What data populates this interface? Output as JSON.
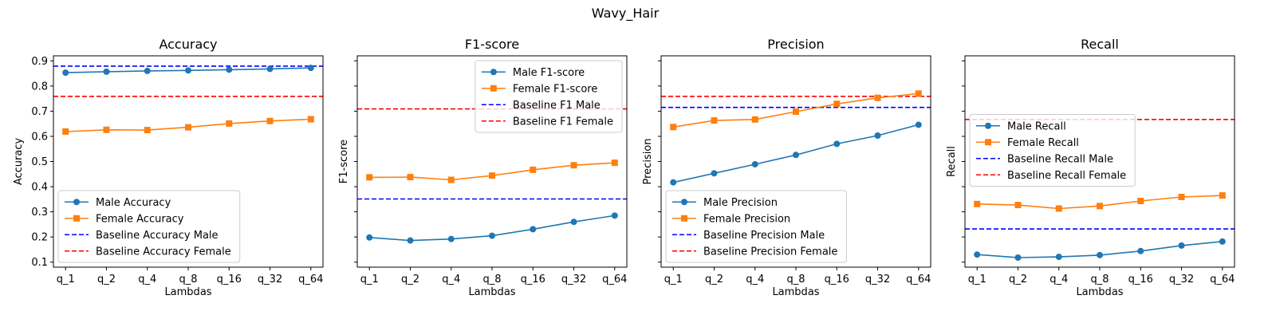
{
  "figure": {
    "suptitle": "Wavy_Hair"
  },
  "colors": {
    "male": "#1f77b4",
    "female": "#ff7f0e",
    "baseline_male": "#0000ff",
    "baseline_female": "#ff0000"
  },
  "chart_data": [
    {
      "type": "line",
      "title": "Accuracy",
      "xlabel": "Lambdas",
      "ylabel": "Accuracy",
      "categories": [
        "q_1",
        "q_2",
        "q_4",
        "q_8",
        "q_16",
        "q_32",
        "q_64"
      ],
      "ylim": [
        0.08,
        0.92
      ],
      "yticks": [
        "0.1",
        "0.2",
        "0.3",
        "0.4",
        "0.5",
        "0.6",
        "0.7",
        "0.8",
        "0.9"
      ],
      "show_ytick_labels": true,
      "legend_position": "lower-left",
      "series": [
        {
          "name": "Male Accuracy",
          "marker": "circle",
          "color": "#1f77b4",
          "values": [
            0.853,
            0.857,
            0.86,
            0.862,
            0.865,
            0.868,
            0.872
          ]
        },
        {
          "name": "Female Accuracy",
          "marker": "square",
          "color": "#ff7f0e",
          "values": [
            0.619,
            0.626,
            0.625,
            0.636,
            0.651,
            0.661,
            0.668
          ]
        }
      ],
      "baselines": [
        {
          "name": "Baseline Accuracy Male",
          "color": "#0000ff",
          "value": 0.879
        },
        {
          "name": "Baseline Accuracy Female",
          "color": "#ff0000",
          "value": 0.759
        }
      ]
    },
    {
      "type": "line",
      "title": "F1-score",
      "xlabel": "Lambdas",
      "ylabel": "F1-score",
      "categories": [
        "q_1",
        "q_2",
        "q_4",
        "q_8",
        "q_16",
        "q_32",
        "q_64"
      ],
      "ylim": [
        0.08,
        0.92
      ],
      "yticks": [
        "0.1",
        "0.2",
        "0.3",
        "0.4",
        "0.5",
        "0.6",
        "0.7",
        "0.8",
        "0.9"
      ],
      "show_ytick_labels": false,
      "legend_position": "upper-right",
      "series": [
        {
          "name": "Male F1-score",
          "marker": "circle",
          "color": "#1f77b4",
          "values": [
            0.198,
            0.186,
            0.192,
            0.205,
            0.231,
            0.26,
            0.285
          ]
        },
        {
          "name": "Female F1-score",
          "marker": "square",
          "color": "#ff7f0e",
          "values": [
            0.437,
            0.438,
            0.427,
            0.444,
            0.467,
            0.485,
            0.495
          ]
        }
      ],
      "baselines": [
        {
          "name": "Baseline F1 Male",
          "color": "#0000ff",
          "value": 0.351
        },
        {
          "name": "Baseline F1 Female",
          "color": "#ff0000",
          "value": 0.709
        }
      ]
    },
    {
      "type": "line",
      "title": "Precision",
      "xlabel": "Lambdas",
      "ylabel": "Precision",
      "categories": [
        "q_1",
        "q_2",
        "q_4",
        "q_8",
        "q_16",
        "q_32",
        "q_64"
      ],
      "ylim": [
        0.08,
        0.92
      ],
      "yticks": [
        "0.1",
        "0.2",
        "0.3",
        "0.4",
        "0.5",
        "0.6",
        "0.7",
        "0.8",
        "0.9"
      ],
      "show_ytick_labels": false,
      "legend_position": "lower-left",
      "series": [
        {
          "name": "Male Precision",
          "marker": "circle",
          "color": "#1f77b4",
          "values": [
            0.417,
            0.453,
            0.489,
            0.526,
            0.57,
            0.603,
            0.646
          ]
        },
        {
          "name": "Female Precision",
          "marker": "square",
          "color": "#ff7f0e",
          "values": [
            0.637,
            0.663,
            0.667,
            0.698,
            0.729,
            0.753,
            0.77
          ]
        }
      ],
      "baselines": [
        {
          "name": "Baseline Precision Male",
          "color": "#0000ff",
          "value": 0.715
        },
        {
          "name": "Baseline Precision Female",
          "color": "#ff0000",
          "value": 0.759
        }
      ]
    },
    {
      "type": "line",
      "title": "Recall",
      "xlabel": "Lambdas",
      "ylabel": "Recall",
      "categories": [
        "q_1",
        "q_2",
        "q_4",
        "q_8",
        "q_16",
        "q_32",
        "q_64"
      ],
      "ylim": [
        0.08,
        0.92
      ],
      "yticks": [
        "0.1",
        "0.2",
        "0.3",
        "0.4",
        "0.5",
        "0.6",
        "0.7",
        "0.8",
        "0.9"
      ],
      "show_ytick_labels": false,
      "legend_position": "center-left",
      "series": [
        {
          "name": "Male Recall",
          "marker": "circle",
          "color": "#1f77b4",
          "values": [
            0.13,
            0.118,
            0.121,
            0.128,
            0.144,
            0.166,
            0.182
          ]
        },
        {
          "name": "Female Recall",
          "marker": "square",
          "color": "#ff7f0e",
          "values": [
            0.331,
            0.327,
            0.313,
            0.323,
            0.343,
            0.359,
            0.365
          ]
        }
      ],
      "baselines": [
        {
          "name": "Baseline Recall Male",
          "color": "#0000ff",
          "value": 0.232
        },
        {
          "name": "Baseline Recall Female",
          "color": "#ff0000",
          "value": 0.667
        }
      ]
    }
  ]
}
